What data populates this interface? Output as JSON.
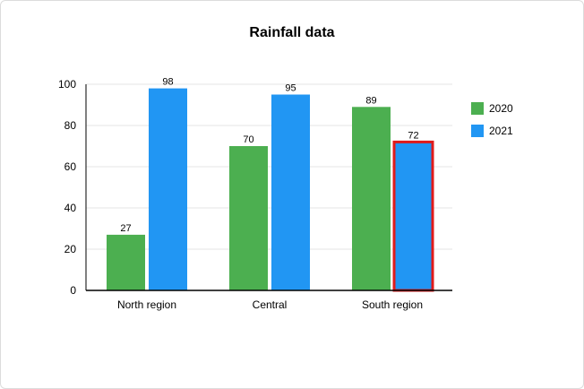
{
  "chart_data": {
    "type": "bar",
    "title": "Rainfall data",
    "xlabel": "",
    "ylabel": "",
    "categories": [
      "North region",
      "Central",
      "South region"
    ],
    "series": [
      {
        "name": "2020",
        "color": "#4caf50",
        "values": [
          27,
          70,
          89
        ]
      },
      {
        "name": "2021",
        "color": "#2196f3",
        "values": [
          98,
          95,
          72
        ]
      }
    ],
    "ylim": [
      0,
      100
    ],
    "yticks": [
      "0",
      "20",
      "40",
      "60",
      "80",
      "100"
    ],
    "grid": true,
    "legend_position": "right",
    "highlight": {
      "series_index": 1,
      "category_index": 2,
      "color": "#e01b1b"
    }
  }
}
